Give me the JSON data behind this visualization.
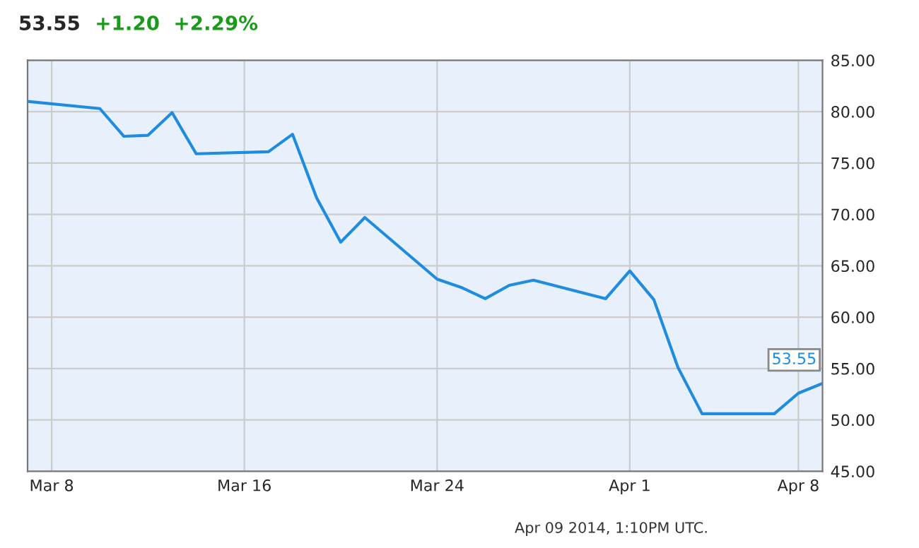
{
  "chart_data": {
    "type": "line",
    "title": "53.55",
    "subtitle": "+1.20  +2.29%",
    "x": [
      "2014-03-07",
      "2014-03-10",
      "2014-03-11",
      "2014-03-12",
      "2014-03-13",
      "2014-03-14",
      "2014-03-17",
      "2014-03-18",
      "2014-03-19",
      "2014-03-20",
      "2014-03-21",
      "2014-03-24",
      "2014-03-25",
      "2014-03-26",
      "2014-03-27",
      "2014-03-28",
      "2014-03-31",
      "2014-04-01",
      "2014-04-02",
      "2014-04-03",
      "2014-04-04",
      "2014-04-07",
      "2014-04-08",
      "2014-04-09"
    ],
    "series": [
      {
        "color": "#1f8ce0",
        "values": [
          81.0,
          80.3,
          77.6,
          77.7,
          79.9,
          75.9,
          76.1,
          77.8,
          71.6,
          67.3,
          69.7,
          63.7,
          62.9,
          61.8,
          63.1,
          63.6,
          61.8,
          64.5,
          61.7,
          55.1,
          50.6,
          50.6,
          52.6,
          53.55
        ],
        "value_labels": [
          null,
          null,
          null,
          null,
          null,
          null,
          null,
          null,
          null,
          null,
          null,
          null,
          null,
          null,
          null,
          null,
          null,
          null,
          null,
          null,
          null,
          null,
          null,
          "53.55"
        ]
      }
    ],
    "xlim": [
      "2014-03-07",
      "2014-04-09"
    ],
    "xticks": [
      {
        "value": "2014-03-08",
        "label": "Mar 8"
      },
      {
        "value": "2014-03-16",
        "label": "Mar 16"
      },
      {
        "value": "2014-03-24",
        "label": "Mar 24"
      },
      {
        "value": "2014-04-01",
        "label": "Apr 1"
      },
      {
        "value": "2014-04-08",
        "label": "Apr 8"
      }
    ],
    "ylim": [
      45,
      85
    ],
    "yticks": [
      {
        "value": 45,
        "label": "45.00"
      },
      {
        "value": 50,
        "label": "50.00"
      },
      {
        "value": 55,
        "label": "55.00"
      },
      {
        "value": 60,
        "label": "60.00"
      },
      {
        "value": 65,
        "label": "65.00"
      },
      {
        "value": 70,
        "label": "70.00"
      },
      {
        "value": 75,
        "label": "75.00"
      },
      {
        "value": 80,
        "label": "80.00"
      },
      {
        "value": 85,
        "label": "85.00"
      }
    ],
    "grid": true,
    "legend": false,
    "marker": "none",
    "line_style": "solid",
    "annotations": [
      "Apr 09 2014, 1:10PM UTC."
    ]
  }
}
